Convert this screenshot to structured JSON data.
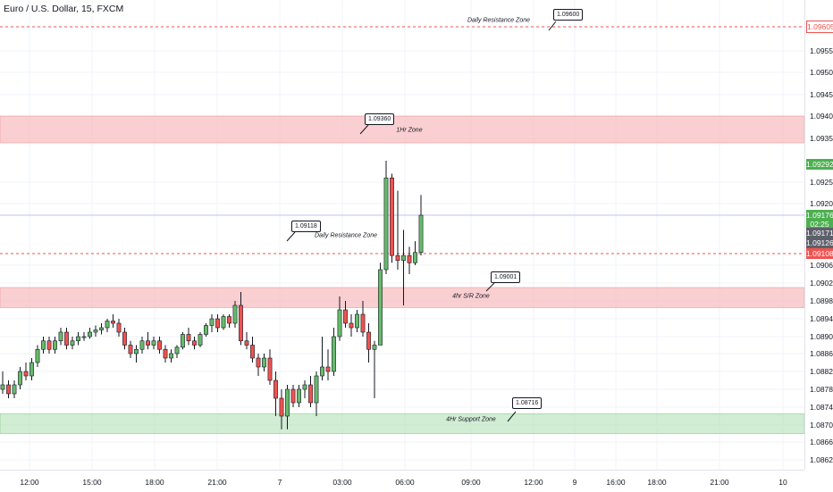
{
  "symbol_title": "Euro / U.S. Dollar, 15, FXCM",
  "colors": {
    "up": "#26a69a",
    "up_fill": "#66bb6a",
    "down": "#ef5350",
    "zone_red": "#f7b6b8",
    "zone_green": "#b9e4bb",
    "resistance_line": "#ef5350",
    "current_line": "#9598ff"
  },
  "price_axis": {
    "ticks": [
      "1.09550",
      "1.09500",
      "1.09450",
      "1.09400",
      "1.09350",
      "1.09250",
      "1.09200",
      "1.09060",
      "1.09020",
      "1.08980",
      "1.08940",
      "1.08900",
      "1.08860",
      "1.08820",
      "1.08780",
      "1.08740",
      "1.08700",
      "1.08660",
      "1.08620"
    ],
    "labels": [
      {
        "text": "1.09605",
        "color": "#ef5350",
        "style": "outline"
      },
      {
        "text": "1.09292",
        "color": "#4caf50",
        "style": "fill"
      },
      {
        "text": "1.09176",
        "color": "#4caf50",
        "style": "fill"
      },
      {
        "text": "02:25",
        "color": "#4caf50",
        "style": "fill"
      },
      {
        "text": "1.09171",
        "color": "#5d606b",
        "style": "fill"
      },
      {
        "text": "1.09126",
        "color": "#5d606b",
        "style": "fill"
      },
      {
        "text": "1.09108",
        "color": "#ef5350",
        "style": "fill"
      }
    ]
  },
  "time_axis": {
    "ticks": [
      "12:00",
      "15:00",
      "18:00",
      "21:00",
      "7",
      "03:00",
      "06:00",
      "09:00",
      "12:00",
      "9",
      "16:00",
      "18:00",
      "21:00",
      "10"
    ]
  },
  "annotations": {
    "daily_resistance_top": "Daily Resistance Zone",
    "hr1_zone": "1Hr Zone",
    "daily_resistance_mid": "Daily Resistance Zone",
    "sr4hr_zone": "4hr S/R Zone",
    "support_4hr": "4Hr Support Zone"
  },
  "callouts": {
    "c1": "1.09600",
    "c2": "1.09360",
    "c3": "1.09118",
    "c4": "1.09001",
    "c5": "1.08716"
  },
  "chart_data": {
    "type": "candlestick",
    "title": "Euro / U.S. Dollar, 15, FXCM",
    "interval": "15",
    "zones": [
      {
        "name": "1Hr Zone",
        "from": 1.0934,
        "to": 1.094,
        "color": "red"
      },
      {
        "name": "4hr S/R Zone",
        "from": 1.08965,
        "to": 1.0901,
        "color": "red"
      },
      {
        "name": "4Hr Support Zone",
        "from": 1.0868,
        "to": 1.08725,
        "color": "green"
      }
    ],
    "lines": [
      {
        "name": "Daily Resistance Zone",
        "value": 1.09605
      },
      {
        "name": "Daily Resistance Zone",
        "value": 1.09108
      }
    ],
    "last_price": 1.09176,
    "candles": [
      {
        "o": 1.0878,
        "h": 1.0882,
        "l": 1.0877,
        "c": 1.0879
      },
      {
        "o": 1.0879,
        "h": 1.088,
        "l": 1.0876,
        "c": 1.0877
      },
      {
        "o": 1.0877,
        "h": 1.088,
        "l": 1.0876,
        "c": 1.0879
      },
      {
        "o": 1.0879,
        "h": 1.0883,
        "l": 1.0878,
        "c": 1.0882
      },
      {
        "o": 1.0882,
        "h": 1.0884,
        "l": 1.088,
        "c": 1.0881
      },
      {
        "o": 1.0881,
        "h": 1.0885,
        "l": 1.088,
        "c": 1.0884
      },
      {
        "o": 1.0884,
        "h": 1.0888,
        "l": 1.0883,
        "c": 1.0887
      },
      {
        "o": 1.0887,
        "h": 1.089,
        "l": 1.0886,
        "c": 1.0889
      },
      {
        "o": 1.0889,
        "h": 1.089,
        "l": 1.0886,
        "c": 1.0887
      },
      {
        "o": 1.0887,
        "h": 1.089,
        "l": 1.0886,
        "c": 1.0889
      },
      {
        "o": 1.0889,
        "h": 1.0892,
        "l": 1.0888,
        "c": 1.0891
      },
      {
        "o": 1.0891,
        "h": 1.0892,
        "l": 1.0887,
        "c": 1.0888
      },
      {
        "o": 1.0888,
        "h": 1.089,
        "l": 1.0887,
        "c": 1.0889
      },
      {
        "o": 1.0889,
        "h": 1.0891,
        "l": 1.0888,
        "c": 1.089
      },
      {
        "o": 1.089,
        "h": 1.0891,
        "l": 1.0889,
        "c": 1.089
      },
      {
        "o": 1.089,
        "h": 1.0892,
        "l": 1.08895,
        "c": 1.0891
      },
      {
        "o": 1.0891,
        "h": 1.08925,
        "l": 1.089,
        "c": 1.08915
      },
      {
        "o": 1.08915,
        "h": 1.0893,
        "l": 1.08905,
        "c": 1.0892
      },
      {
        "o": 1.0892,
        "h": 1.0894,
        "l": 1.0891,
        "c": 1.08935
      },
      {
        "o": 1.08935,
        "h": 1.0895,
        "l": 1.0892,
        "c": 1.0893
      },
      {
        "o": 1.0893,
        "h": 1.0894,
        "l": 1.089,
        "c": 1.0891
      },
      {
        "o": 1.0891,
        "h": 1.0892,
        "l": 1.0887,
        "c": 1.0888
      },
      {
        "o": 1.0888,
        "h": 1.0889,
        "l": 1.0885,
        "c": 1.0886
      },
      {
        "o": 1.0886,
        "h": 1.0888,
        "l": 1.0884,
        "c": 1.0887
      },
      {
        "o": 1.0887,
        "h": 1.089,
        "l": 1.0886,
        "c": 1.0889
      },
      {
        "o": 1.0889,
        "h": 1.0891,
        "l": 1.0887,
        "c": 1.0888
      },
      {
        "o": 1.0888,
        "h": 1.089,
        "l": 1.0887,
        "c": 1.0889
      },
      {
        "o": 1.0889,
        "h": 1.089,
        "l": 1.0886,
        "c": 1.0887
      },
      {
        "o": 1.0887,
        "h": 1.0888,
        "l": 1.0884,
        "c": 1.0885
      },
      {
        "o": 1.0885,
        "h": 1.0887,
        "l": 1.0884,
        "c": 1.0886
      },
      {
        "o": 1.0886,
        "h": 1.0888,
        "l": 1.0885,
        "c": 1.08875
      },
      {
        "o": 1.08875,
        "h": 1.0891,
        "l": 1.0887,
        "c": 1.08905
      },
      {
        "o": 1.08905,
        "h": 1.0892,
        "l": 1.0888,
        "c": 1.0889
      },
      {
        "o": 1.0889,
        "h": 1.089,
        "l": 1.0887,
        "c": 1.0888
      },
      {
        "o": 1.0888,
        "h": 1.0891,
        "l": 1.08875,
        "c": 1.08905
      },
      {
        "o": 1.08905,
        "h": 1.0893,
        "l": 1.089,
        "c": 1.08925
      },
      {
        "o": 1.08925,
        "h": 1.0895,
        "l": 1.0891,
        "c": 1.0894
      },
      {
        "o": 1.0894,
        "h": 1.0895,
        "l": 1.0891,
        "c": 1.0892
      },
      {
        "o": 1.0892,
        "h": 1.0895,
        "l": 1.08915,
        "c": 1.08945
      },
      {
        "o": 1.08945,
        "h": 1.0895,
        "l": 1.0892,
        "c": 1.0893
      },
      {
        "o": 1.0893,
        "h": 1.0898,
        "l": 1.0892,
        "c": 1.0897
      },
      {
        "o": 1.0897,
        "h": 1.09,
        "l": 1.0888,
        "c": 1.0889
      },
      {
        "o": 1.0889,
        "h": 1.0891,
        "l": 1.0887,
        "c": 1.0888
      },
      {
        "o": 1.0888,
        "h": 1.089,
        "l": 1.0884,
        "c": 1.0885
      },
      {
        "o": 1.0885,
        "h": 1.0886,
        "l": 1.0881,
        "c": 1.0883
      },
      {
        "o": 1.0883,
        "h": 1.0886,
        "l": 1.0882,
        "c": 1.0885
      },
      {
        "o": 1.0885,
        "h": 1.0887,
        "l": 1.0879,
        "c": 1.088
      },
      {
        "o": 1.088,
        "h": 1.0882,
        "l": 1.0872,
        "c": 1.0876
      },
      {
        "o": 1.0876,
        "h": 1.0878,
        "l": 1.0869,
        "c": 1.0872
      },
      {
        "o": 1.0872,
        "h": 1.0879,
        "l": 1.0869,
        "c": 1.0878
      },
      {
        "o": 1.0878,
        "h": 1.0879,
        "l": 1.0874,
        "c": 1.0875
      },
      {
        "o": 1.0875,
        "h": 1.0879,
        "l": 1.0874,
        "c": 1.0878
      },
      {
        "o": 1.0878,
        "h": 1.088,
        "l": 1.0876,
        "c": 1.0879
      },
      {
        "o": 1.0879,
        "h": 1.0881,
        "l": 1.0874,
        "c": 1.0875
      },
      {
        "o": 1.0875,
        "h": 1.0882,
        "l": 1.0872,
        "c": 1.0881
      },
      {
        "o": 1.0881,
        "h": 1.089,
        "l": 1.088,
        "c": 1.0883
      },
      {
        "o": 1.0883,
        "h": 1.0887,
        "l": 1.088,
        "c": 1.0882
      },
      {
        "o": 1.0882,
        "h": 1.0892,
        "l": 1.0881,
        "c": 1.089
      },
      {
        "o": 1.089,
        "h": 1.0899,
        "l": 1.0889,
        "c": 1.0896
      },
      {
        "o": 1.0896,
        "h": 1.0898,
        "l": 1.0892,
        "c": 1.0893
      },
      {
        "o": 1.0893,
        "h": 1.0895,
        "l": 1.089,
        "c": 1.0892
      },
      {
        "o": 1.0892,
        "h": 1.0896,
        "l": 1.0891,
        "c": 1.0895
      },
      {
        "o": 1.0895,
        "h": 1.0898,
        "l": 1.089,
        "c": 1.0891
      },
      {
        "o": 1.0891,
        "h": 1.0893,
        "l": 1.0884,
        "c": 1.0887
      },
      {
        "o": 1.0887,
        "h": 1.0889,
        "l": 1.0876,
        "c": 1.0888
      },
      {
        "o": 1.0888,
        "h": 1.0907,
        "l": 1.0888,
        "c": 1.0905
      },
      {
        "o": 1.0905,
        "h": 1.093,
        "l": 1.0904,
        "c": 1.0926
      },
      {
        "o": 1.0926,
        "h": 1.0927,
        "l": 1.0907,
        "c": 1.091
      },
      {
        "o": 1.091,
        "h": 1.0923,
        "l": 1.0905,
        "c": 1.0908
      },
      {
        "o": 1.0908,
        "h": 1.0915,
        "l": 1.0897,
        "c": 1.091
      },
      {
        "o": 1.091,
        "h": 1.0912,
        "l": 1.0904,
        "c": 1.0907
      },
      {
        "o": 1.0907,
        "h": 1.0913,
        "l": 1.0906,
        "c": 1.0911
      },
      {
        "o": 1.0911,
        "h": 1.0922,
        "l": 1.091,
        "c": 1.09176
      }
    ]
  }
}
